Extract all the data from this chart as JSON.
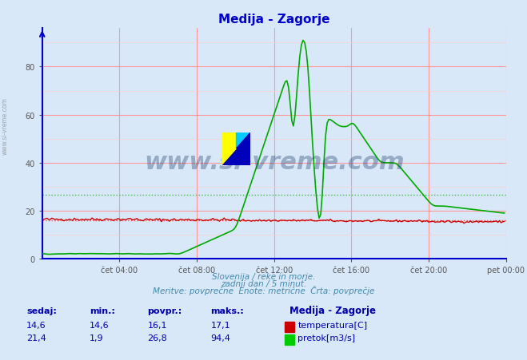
{
  "title": "Medija - Zagorje",
  "title_color": "#0000cc",
  "bg_color": "#d8e8f8",
  "plot_bg_color": "#d8e8f8",
  "grid_color_major": "#ff9999",
  "grid_color_minor": "#ffcccc",
  "x_label_color": "#555555",
  "y_label_color": "#555555",
  "axis_color": "#0000cc",
  "watermark_text": "www.si-vreme.com",
  "watermark_color": "#1a3a6a",
  "caption_line1": "Slovenija / reke in morje.",
  "caption_line2": "zadnji dan / 5 minut.",
  "caption_line3": "Meritve: povprečne  Enote: metrične  Črta: povprečje",
  "caption_color": "#4488aa",
  "legend_title": "Medija - Zagorje",
  "legend_title_color": "#0000aa",
  "table_header": [
    "sedaj:",
    "min.:",
    "povpr.:",
    "maks.:"
  ],
  "table_color": "#0000aa",
  "table_data": [
    {
      "sedaj": "14,6",
      "min": "14,6",
      "povpr": "16,1",
      "maks": "17,1",
      "color": "#cc0000",
      "label": "temperatura[C]"
    },
    {
      "sedaj": "21,4",
      "min": "1,9",
      "povpr": "26,8",
      "maks": "94,4",
      "color": "#00cc00",
      "label": "pretok[m3/s]"
    }
  ],
  "x_ticks": [
    "čet 04:00",
    "čet 08:00",
    "čet 12:00",
    "čet 16:00",
    "čet 20:00",
    "pet 00:00"
  ],
  "y_ticks": [
    0,
    20,
    40,
    60,
    80
  ],
  "ylim": [
    0,
    96
  ],
  "xlim": [
    0,
    288
  ],
  "temp_avg": 16.1,
  "flow_avg": 26.8,
  "temp_color": "#cc0000",
  "flow_color": "#00aa00",
  "avg_line_color_temp": "#ff4444",
  "avg_line_color_flow": "#44bb44"
}
